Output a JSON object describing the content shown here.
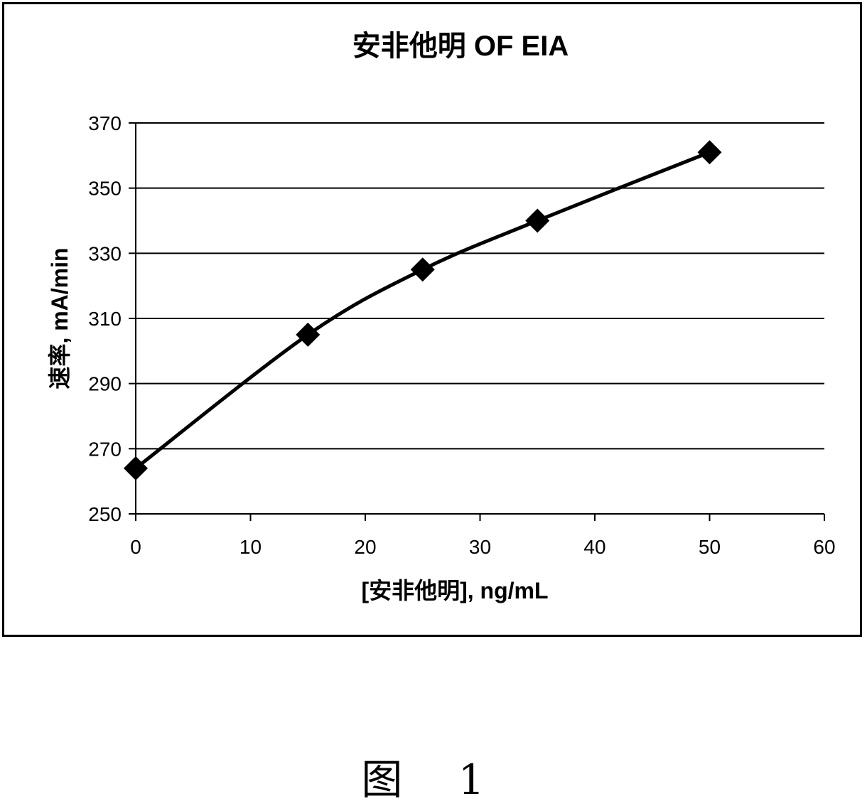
{
  "chart_data": {
    "type": "line",
    "title": "安非他明 OF EIA",
    "xlabel": "[安非他明], ng/mL",
    "ylabel": "速率, mA/min",
    "x": [
      0,
      15,
      25,
      35,
      50
    ],
    "series": [
      {
        "values": [
          264,
          305,
          325,
          340,
          361
        ]
      }
    ],
    "xlim": [
      0,
      60
    ],
    "ylim": [
      250,
      370
    ],
    "xticks": [
      0,
      10,
      20,
      30,
      40,
      50,
      60
    ],
    "yticks": [
      250,
      270,
      290,
      310,
      330,
      350,
      370
    ],
    "grid": "horizontal",
    "marker": "diamond",
    "smooth": true,
    "line_color": "#000000"
  },
  "caption": "图 1"
}
